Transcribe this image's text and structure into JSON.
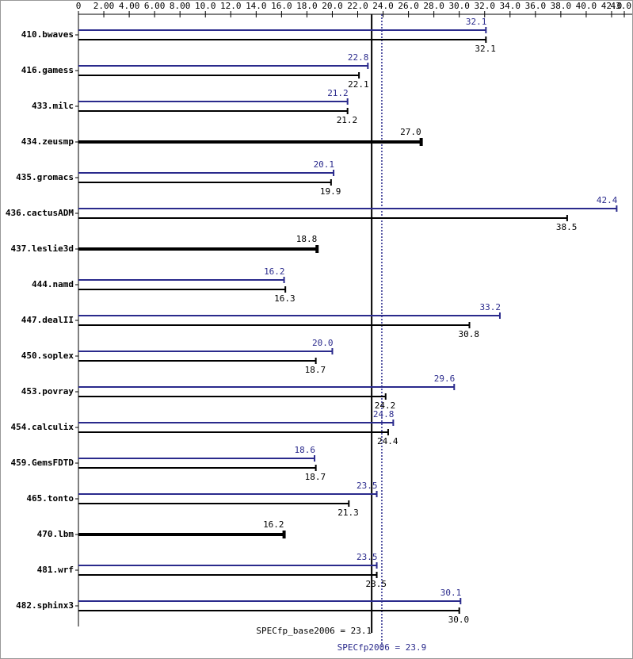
{
  "chart_data": {
    "type": "bar",
    "orientation": "horizontal",
    "categories": [
      "410.bwaves",
      "416.gamess",
      "433.milc",
      "434.zeusmp",
      "435.gromacs",
      "436.cactusADM",
      "437.leslie3d",
      "444.namd",
      "447.dealII",
      "450.soplex",
      "453.povray",
      "454.calculix",
      "459.GemsFDTD",
      "465.tonto",
      "470.lbm",
      "481.wrf",
      "482.sphinx3"
    ],
    "series": [
      {
        "color": "#2a2a8c",
        "values": [
          32.1,
          22.8,
          21.2,
          null,
          20.1,
          42.4,
          null,
          16.2,
          33.2,
          20.0,
          29.6,
          24.8,
          18.6,
          23.5,
          null,
          23.5,
          30.1
        ],
        "value_labels": [
          "32.1",
          "22.8",
          "21.2",
          null,
          "20.1",
          "42.4",
          null,
          "16.2",
          "33.2",
          "20.0",
          "29.6",
          "24.8",
          "18.6",
          "23.5",
          null,
          "23.5",
          "30.1"
        ]
      },
      {
        "color": "#000000",
        "values": [
          32.1,
          22.1,
          21.2,
          27.0,
          19.9,
          38.5,
          18.8,
          16.3,
          30.8,
          18.7,
          24.2,
          24.4,
          18.7,
          21.3,
          16.2,
          23.5,
          30.0
        ],
        "value_labels": [
          "32.1",
          "22.1",
          "21.2",
          "27.0",
          "19.9",
          "38.5",
          "18.8",
          "16.3",
          "30.8",
          "18.7",
          "24.2",
          "24.4",
          "18.7",
          "21.3",
          "16.2",
          "23.5",
          "30.0"
        ]
      }
    ],
    "xlim": [
      0,
      43.0
    ],
    "xticks": [
      0,
      {
        "value": 2,
        "label": "2.00"
      },
      {
        "value": 4,
        "label": "4.00"
      },
      {
        "value": 6,
        "label": "6.00"
      },
      {
        "value": 8,
        "label": "8.00"
      },
      {
        "value": 10,
        "label": "10.0"
      },
      {
        "value": 12,
        "label": "12.0"
      },
      {
        "value": 14,
        "label": "14.0"
      },
      {
        "value": 16,
        "label": "16.0"
      },
      {
        "value": 18,
        "label": "18.0"
      },
      {
        "value": 20,
        "label": "20.0"
      },
      {
        "value": 22,
        "label": "22.0"
      },
      {
        "value": 24,
        "label": "24.0"
      },
      {
        "value": 26,
        "label": "26.0"
      },
      {
        "value": 28,
        "label": "28.0"
      },
      {
        "value": 30,
        "label": "30.0"
      },
      {
        "value": 32,
        "label": "32.0"
      },
      {
        "value": 34,
        "label": "34.0"
      },
      {
        "value": 36,
        "label": "36.0"
      },
      {
        "value": 38,
        "label": "38.0"
      },
      {
        "value": 40,
        "label": "40.0"
      },
      {
        "value": 42,
        "label": "42.0"
      },
      {
        "value": 43,
        "label": "43.0"
      }
    ],
    "reference_lines": [
      {
        "value": 23.1,
        "label": "SPECfp_base2006 = 23.1",
        "color": "#000000",
        "style": "solid"
      },
      {
        "value": 23.9,
        "label": "SPECfp2006 = 23.9",
        "color": "#2a2a8c",
        "style": "dotted"
      }
    ]
  }
}
